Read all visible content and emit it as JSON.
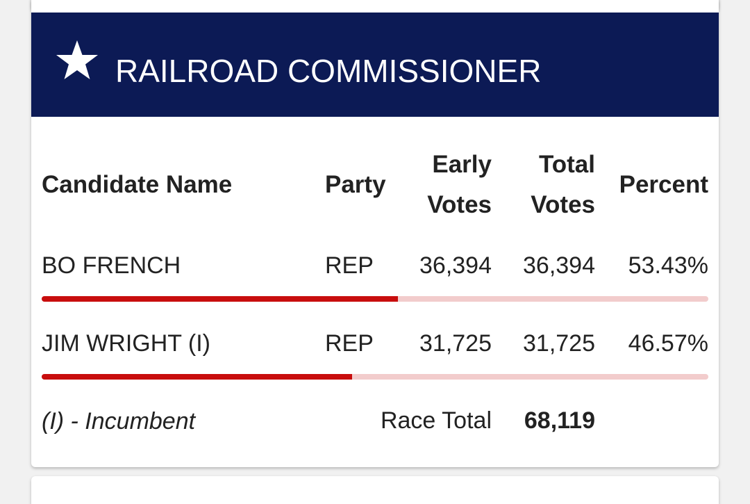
{
  "header": {
    "title": "RAILROAD COMMISSIONER"
  },
  "table": {
    "columns": [
      "Candidate Name",
      "Party",
      "Early Votes",
      "Total Votes",
      "Percent"
    ],
    "rows": [
      {
        "name": "BO FRENCH",
        "party": "REP",
        "early": "36,394",
        "total": "36,394",
        "percent": {
          "value": 53.43,
          "label": "53.43%"
        }
      },
      {
        "name": "JIM WRIGHT (I)",
        "party": "REP",
        "early": "31,725",
        "total": "31,725",
        "percent": {
          "value": 46.57,
          "label": "46.57%"
        }
      }
    ]
  },
  "footer": {
    "note": "(I) - Incumbent",
    "total_label": "Race Total",
    "total": "68,119"
  }
}
